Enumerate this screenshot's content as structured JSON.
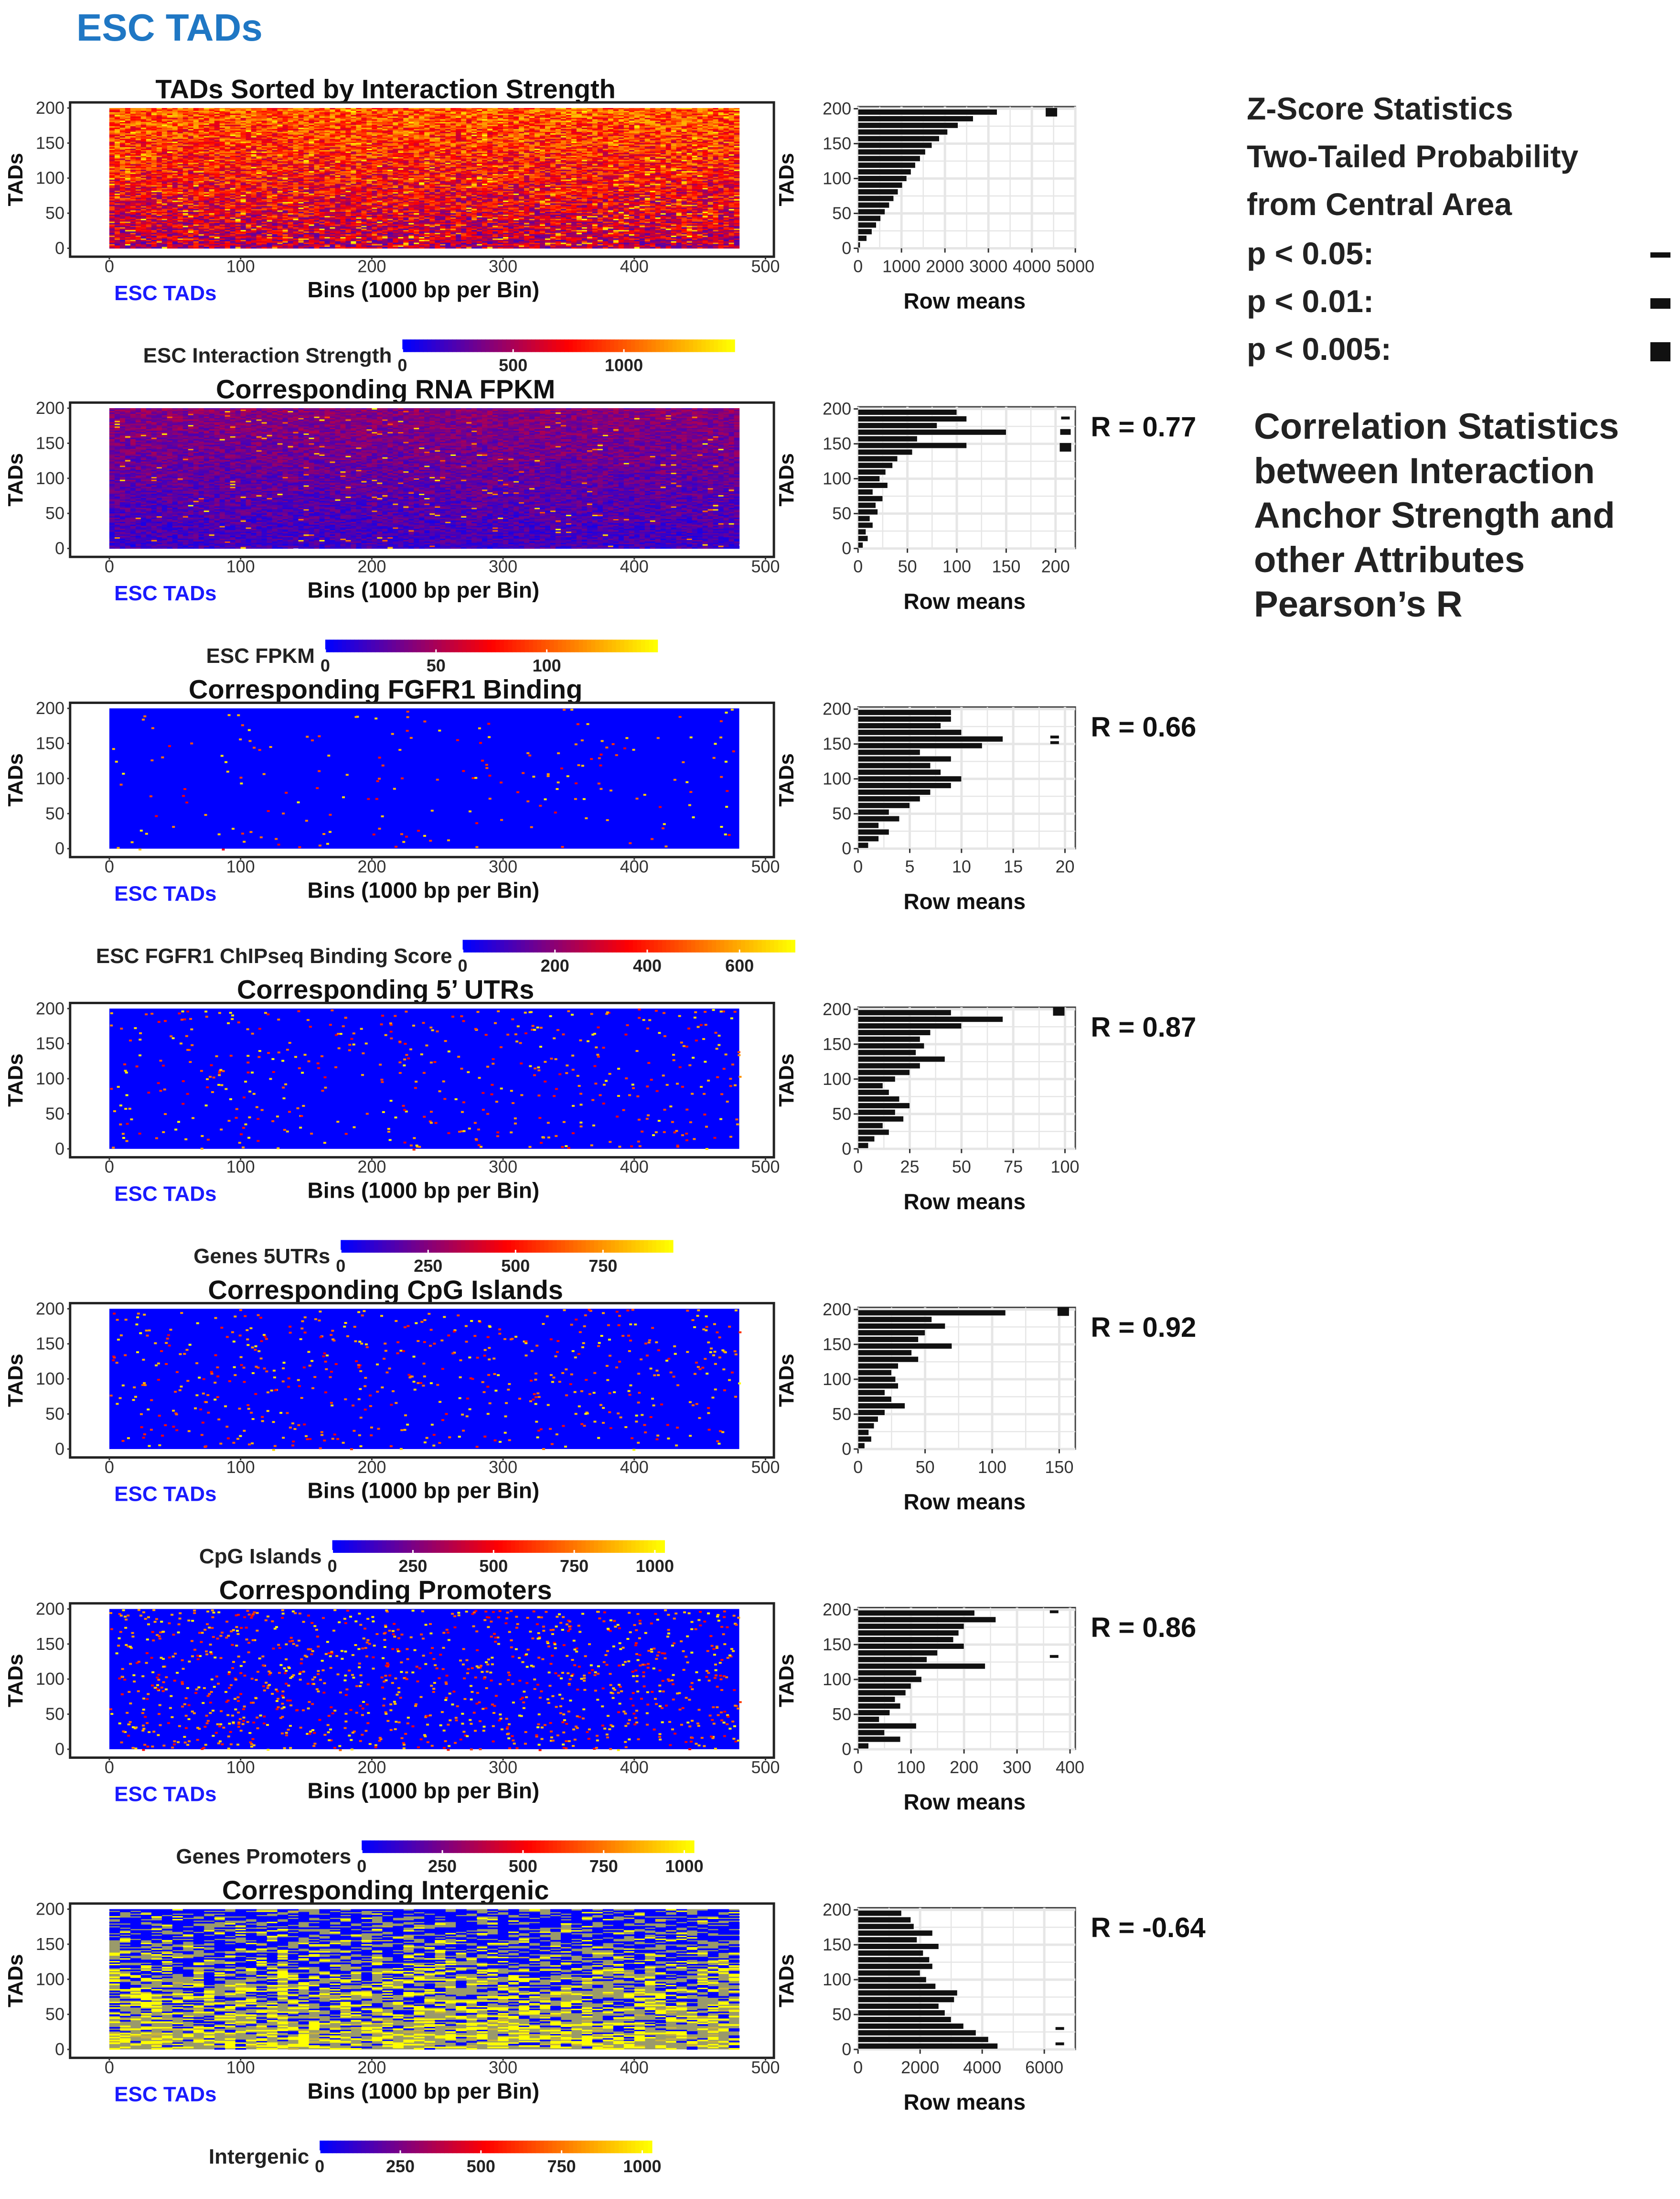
{
  "page_title": "ESC TADs",
  "legend": {
    "title_lines": [
      "Z-Score Statistics",
      "Two-Tailed Probability",
      "from Central Area"
    ],
    "items": [
      {
        "label": "p < 0.05:"
      },
      {
        "label": "p < 0.01:"
      },
      {
        "label": "p < 0.005:"
      }
    ],
    "corr_lines": [
      "Correlation Statistics",
      "between Interaction",
      "Anchor Strength and",
      "other Attributes",
      "Pearson’s R"
    ]
  },
  "colors": {
    "low": "#0000ff",
    "mid": "#ff0000",
    "high": "#ffff00",
    "title_blue": "#1f77c4",
    "label_blue": "#1a1aff",
    "bar": "#111111",
    "grid": "#e6e6e6"
  },
  "chart_data": [
    {
      "type": "heatmap",
      "title": "TADs Sorted by Interaction Strength",
      "ylabel": "TADs",
      "xlabel": "Bins (1000 bp per Bin)",
      "sublabel": "ESC TADs",
      "xlim": [
        0,
        500
      ],
      "ylim": [
        0,
        200
      ],
      "x_ticks": [
        "0",
        "100",
        "200",
        "300",
        "400",
        "500"
      ],
      "y_ticks": [
        "0",
        "50",
        "100",
        "150",
        "200"
      ],
      "colorbar": {
        "label": "ESC Interaction Strength",
        "ticks": [
          "0",
          "500",
          "1000"
        ],
        "range": [
          0,
          1500
        ],
        "tick_values": [
          0,
          500,
          1000
        ]
      },
      "fill": {
        "base": 0.35,
        "top": 0.75,
        "noise": 0.45,
        "hot_prob": 0.08,
        "pattern": "rows"
      },
      "row_means": {
        "ylabel": "TADs",
        "xlabel": "Row means",
        "xlim": [
          0,
          5000
        ],
        "x_ticks": [
          "0",
          "1000",
          "2000",
          "3000",
          "4000",
          "5000"
        ],
        "tick_values": [
          0,
          1000,
          2000,
          3000,
          4000,
          5000
        ],
        "y_ticks": [
          "0",
          "50",
          "100",
          "150",
          "200"
        ],
        "values": [
          50,
          200,
          320,
          420,
          520,
          620,
          720,
          820,
          920,
          1020,
          1120,
          1220,
          1320,
          1430,
          1550,
          1700,
          1870,
          2060,
          2300,
          2650,
          3200
        ],
        "markers": [
          {
            "y": 195,
            "x": 4450,
            "level": "p < 0.005"
          }
        ]
      }
    },
    {
      "type": "heatmap",
      "title": "Corresponding RNA FPKM",
      "ylabel": "TADs",
      "xlabel": "Bins (1000 bp per Bin)",
      "sublabel": "ESC TADs",
      "xlim": [
        0,
        500
      ],
      "ylim": [
        0,
        200
      ],
      "x_ticks": [
        "0",
        "100",
        "200",
        "300",
        "400",
        "500"
      ],
      "y_ticks": [
        "0",
        "50",
        "100",
        "150",
        "200"
      ],
      "colorbar": {
        "label": "ESC FPKM",
        "ticks": [
          "0",
          "50",
          "100"
        ],
        "range": [
          0,
          150
        ],
        "tick_values": [
          0,
          50,
          100
        ]
      },
      "fill": {
        "base": 0.12,
        "top": 0.3,
        "noise": 0.2,
        "hot_prob": 0.02,
        "pattern": "rows"
      },
      "row_means": {
        "ylabel": "TADs",
        "xlabel": "Row means",
        "xlim": [
          0,
          220
        ],
        "x_ticks": [
          "0",
          "50",
          "100",
          "150",
          "200"
        ],
        "tick_values": [
          0,
          50,
          100,
          150,
          200
        ],
        "y_ticks": [
          "0",
          "50",
          "100",
          "150",
          "200"
        ],
        "values": [
          5,
          10,
          8,
          15,
          12,
          20,
          18,
          25,
          15,
          30,
          22,
          28,
          35,
          40,
          55,
          110,
          60,
          150,
          80,
          110,
          100
        ],
        "markers": [
          {
            "y": 187,
            "x": 210,
            "level": "p < 0.05"
          },
          {
            "y": 167,
            "x": 210,
            "level": "p < 0.01"
          },
          {
            "y": 145,
            "x": 210,
            "level": "p < 0.005"
          }
        ]
      },
      "r_label": "R = 0.77"
    },
    {
      "type": "heatmap",
      "title": "Corresponding FGFR1 Binding",
      "ylabel": "TADs",
      "xlabel": "Bins (1000 bp per Bin)",
      "sublabel": "ESC TADs",
      "xlim": [
        0,
        500
      ],
      "ylim": [
        0,
        200
      ],
      "x_ticks": [
        "0",
        "100",
        "200",
        "300",
        "400",
        "500"
      ],
      "y_ticks": [
        "0",
        "50",
        "100",
        "150",
        "200"
      ],
      "colorbar": {
        "label": "ESC FGFR1 ChIPseq Binding Score",
        "ticks": [
          "0",
          "200",
          "400",
          "600"
        ],
        "range": [
          0,
          720
        ],
        "tick_values": [
          0,
          200,
          400,
          600
        ]
      },
      "fill": {
        "base": 0.0,
        "top": 0.0,
        "noise": 0.0,
        "hot_prob": 0.004,
        "pattern": "sparse"
      },
      "row_means": {
        "ylabel": "TADs",
        "xlabel": "Row means",
        "xlim": [
          0,
          21
        ],
        "x_ticks": [
          "0",
          "5",
          "10",
          "15",
          "20"
        ],
        "tick_values": [
          0,
          5,
          10,
          15,
          20
        ],
        "y_ticks": [
          "0",
          "50",
          "100",
          "150",
          "200"
        ],
        "values": [
          1,
          2,
          3,
          2,
          4,
          3,
          5,
          6,
          7,
          9,
          10,
          8,
          7,
          9,
          6,
          12,
          14,
          10,
          8,
          9,
          9
        ],
        "markers": [
          {
            "y": 160,
            "x": 19,
            "level": "p < 0.05"
          },
          {
            "y": 152,
            "x": 19,
            "level": "p < 0.05"
          }
        ]
      },
      "r_label": "R = 0.66"
    },
    {
      "type": "heatmap",
      "title": "Corresponding 5’ UTRs",
      "ylabel": "TADs",
      "xlabel": "Bins (1000 bp per Bin)",
      "sublabel": "ESC TADs",
      "xlim": [
        0,
        500
      ],
      "ylim": [
        0,
        200
      ],
      "x_ticks": [
        "0",
        "100",
        "200",
        "300",
        "400",
        "500"
      ],
      "y_ticks": [
        "0",
        "50",
        "100",
        "150",
        "200"
      ],
      "colorbar": {
        "label": "Genes 5UTRs",
        "ticks": [
          "0",
          "250",
          "500",
          "750"
        ],
        "range": [
          0,
          950
        ],
        "tick_values": [
          0,
          250,
          500,
          750
        ]
      },
      "fill": {
        "base": 0.0,
        "top": 0.0,
        "noise": 0.0,
        "hot_prob": 0.01,
        "pattern": "sparse"
      },
      "row_means": {
        "ylabel": "TADs",
        "xlabel": "Row means",
        "xlim": [
          0,
          105
        ],
        "x_ticks": [
          "0",
          "25",
          "50",
          "75",
          "100"
        ],
        "tick_values": [
          0,
          25,
          50,
          75,
          100
        ],
        "y_ticks": [
          "0",
          "50",
          "100",
          "150",
          "200"
        ],
        "values": [
          5,
          8,
          15,
          12,
          22,
          18,
          25,
          20,
          15,
          12,
          18,
          25,
          30,
          42,
          28,
          32,
          30,
          35,
          50,
          70,
          45
        ],
        "markers": [
          {
            "y": 197,
            "x": 97,
            "level": "p < 0.005"
          }
        ]
      },
      "r_label": "R = 0.87"
    },
    {
      "type": "heatmap",
      "title": "Corresponding CpG Islands",
      "ylabel": "TADs",
      "xlabel": "Bins (1000 bp per Bin)",
      "sublabel": "ESC TADs",
      "xlim": [
        0,
        500
      ],
      "ylim": [
        0,
        200
      ],
      "x_ticks": [
        "0",
        "100",
        "200",
        "300",
        "400",
        "500"
      ],
      "y_ticks": [
        "0",
        "50",
        "100",
        "150",
        "200"
      ],
      "colorbar": {
        "label": "CpG Islands",
        "ticks": [
          "0",
          "250",
          "500",
          "750",
          "1000"
        ],
        "range": [
          0,
          1030
        ],
        "tick_values": [
          0,
          250,
          500,
          750,
          1000
        ]
      },
      "fill": {
        "base": 0.0,
        "top": 0.0,
        "noise": 0.0,
        "hot_prob": 0.012,
        "pattern": "sparse"
      },
      "row_means": {
        "ylabel": "TADs",
        "xlabel": "Row means",
        "xlim": [
          0,
          162
        ],
        "x_ticks": [
          "0",
          "50",
          "100",
          "150"
        ],
        "tick_values": [
          0,
          50,
          100,
          150
        ],
        "y_ticks": [
          "0",
          "50",
          "100",
          "150",
          "200"
        ],
        "values": [
          5,
          10,
          8,
          12,
          15,
          20,
          35,
          25,
          20,
          30,
          28,
          25,
          30,
          45,
          40,
          70,
          45,
          50,
          65,
          55,
          110
        ],
        "markers": [
          {
            "y": 197,
            "x": 153,
            "level": "p < 0.005"
          }
        ]
      },
      "r_label": "R = 0.92"
    },
    {
      "type": "heatmap",
      "title": "Corresponding Promoters",
      "ylabel": "TADs",
      "xlabel": "Bins (1000 bp per Bin)",
      "sublabel": "ESC TADs",
      "xlim": [
        0,
        500
      ],
      "ylim": [
        0,
        200
      ],
      "x_ticks": [
        "0",
        "100",
        "200",
        "300",
        "400",
        "500"
      ],
      "y_ticks": [
        "0",
        "50",
        "100",
        "150",
        "200"
      ],
      "colorbar": {
        "label": "Genes Promoters",
        "ticks": [
          "0",
          "250",
          "500",
          "750",
          "1000"
        ],
        "range": [
          0,
          1030
        ],
        "tick_values": [
          0,
          250,
          500,
          750,
          1000
        ]
      },
      "fill": {
        "base": 0.0,
        "top": 0.0,
        "noise": 0.0,
        "hot_prob": 0.025,
        "pattern": "sparse"
      },
      "row_means": {
        "ylabel": "TADs",
        "xlabel": "Row means",
        "xlim": [
          0,
          410
        ],
        "x_ticks": [
          "0",
          "100",
          "200",
          "300",
          "400"
        ],
        "tick_values": [
          0,
          100,
          200,
          300,
          400
        ],
        "y_ticks": [
          "0",
          "50",
          "100",
          "150",
          "200"
        ],
        "values": [
          20,
          80,
          50,
          110,
          40,
          60,
          80,
          70,
          90,
          100,
          120,
          110,
          240,
          130,
          150,
          200,
          180,
          190,
          200,
          260,
          220
        ],
        "markers": [
          {
            "y": 197,
            "x": 370,
            "level": "p < 0.05"
          },
          {
            "y": 133,
            "x": 370,
            "level": "p < 0.05"
          }
        ]
      },
      "r_label": "R = 0.86"
    },
    {
      "type": "heatmap",
      "title": "Corresponding Intergenic",
      "ylabel": "TADs",
      "xlabel": "Bins (1000 bp per Bin)",
      "sublabel": "ESC TADs",
      "xlim": [
        0,
        500
      ],
      "ylim": [
        0,
        200
      ],
      "x_ticks": [
        "0",
        "100",
        "200",
        "300",
        "400",
        "500"
      ],
      "y_ticks": [
        "0",
        "50",
        "100",
        "150",
        "200"
      ],
      "colorbar": {
        "label": "Intergenic",
        "ticks": [
          "0",
          "250",
          "500",
          "750",
          "1000"
        ],
        "range": [
          0,
          1030
        ],
        "tick_values": [
          0,
          250,
          500,
          750,
          1000
        ]
      },
      "fill": {
        "base": 0.0,
        "top": 0.0,
        "noise": 0.0,
        "hot_prob": 0.0,
        "pattern": "intergenic"
      },
      "row_means": {
        "ylabel": "TADs",
        "xlabel": "Row means",
        "xlim": [
          0,
          7000
        ],
        "x_ticks": [
          "0",
          "2000",
          "4000",
          "6000"
        ],
        "tick_values": [
          0,
          2000,
          4000,
          6000
        ],
        "y_ticks": [
          "0",
          "50",
          "100",
          "150",
          "200"
        ],
        "values": [
          4500,
          4200,
          3800,
          3400,
          3000,
          2800,
          2600,
          3100,
          3200,
          2500,
          2200,
          2000,
          2400,
          2300,
          2100,
          2600,
          1900,
          2400,
          1800,
          1700,
          1400
        ],
        "markers": [
          {
            "y": 30,
            "x": 6500,
            "level": "p < 0.05"
          },
          {
            "y": 8,
            "x": 6500,
            "level": "p < 0.05"
          }
        ]
      },
      "r_label": "R = -0.64"
    }
  ]
}
